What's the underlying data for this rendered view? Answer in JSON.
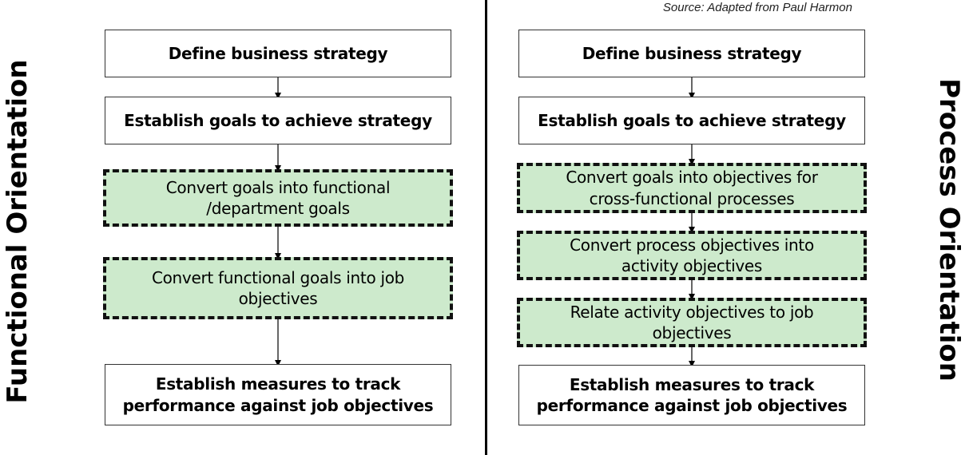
{
  "source": "Source: Adapted from Paul Harmon",
  "left": {
    "label": "Functional Orientation",
    "boxes": [
      "Define business strategy",
      "Establish goals to achieve strategy",
      "Convert goals into functional /department goals",
      "Convert functional goals into job objectives",
      "Establish measures to track performance against job objectives"
    ]
  },
  "right": {
    "label": "Process Orientation",
    "boxes": [
      "Define business strategy",
      "Establish goals to achieve strategy",
      "Convert goals into objectives for cross-functional processes",
      "Convert process objectives into activity objectives",
      "Relate activity objectives to job objectives",
      "Establish measures to track performance against job objectives"
    ]
  },
  "colors": {
    "highlight_fill": "#cdeacc",
    "border": "#111111"
  }
}
